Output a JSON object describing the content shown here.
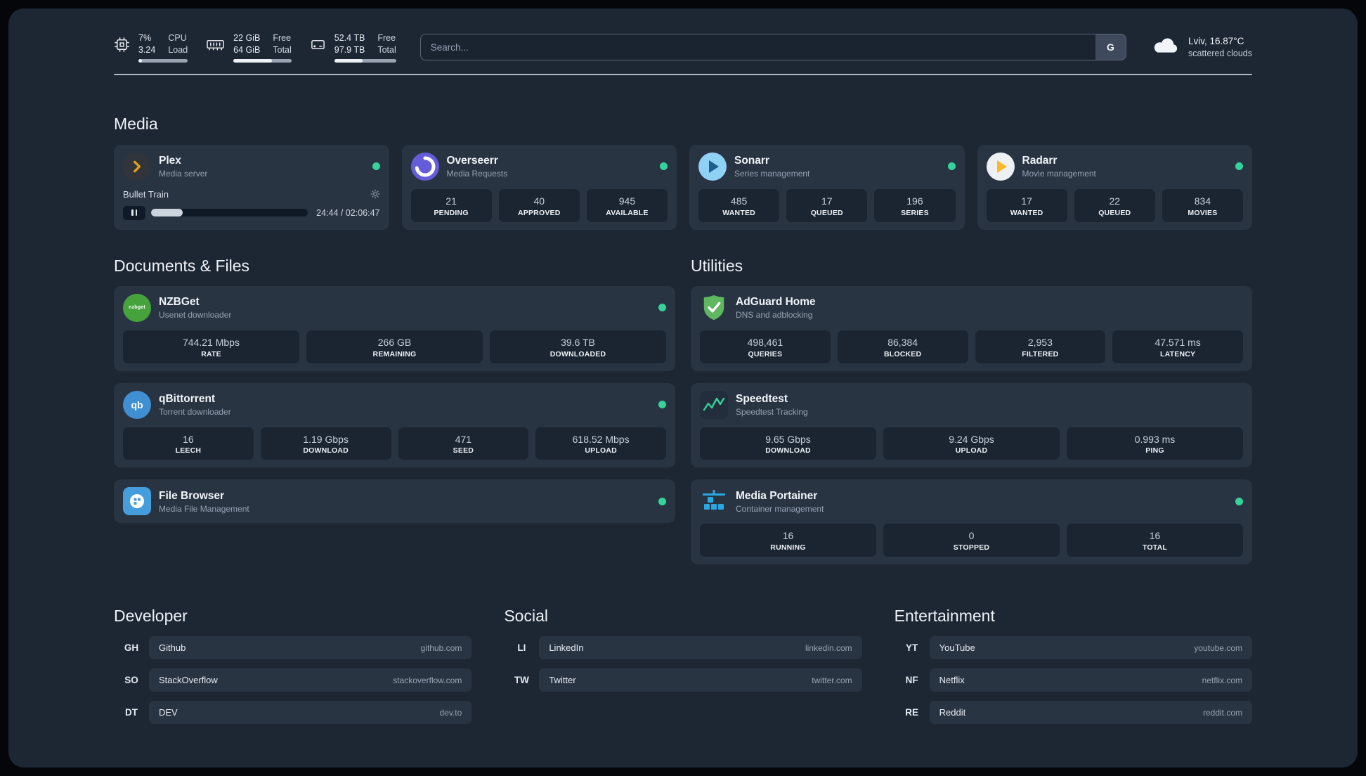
{
  "topbar": {
    "cpu": {
      "value_top": "7%",
      "value_bottom": "3.24",
      "label_top": "CPU",
      "label_bottom": "Load",
      "bar_percent": 7
    },
    "memory": {
      "value_top": "22 GiB",
      "value_bottom": "64 GiB",
      "label_top": "Free",
      "label_bottom": "Total",
      "bar_percent": 66
    },
    "disk": {
      "value_top": "52.4 TB",
      "value_bottom": "97.9 TB",
      "label_top": "Free",
      "label_bottom": "Total",
      "bar_percent": 46
    },
    "search": {
      "placeholder": "Search...",
      "provider_button": "G"
    },
    "weather": {
      "location": "Lviv, 16.87°C",
      "condition": "scattered clouds"
    }
  },
  "media": {
    "title": "Media",
    "cards": [
      {
        "name": "Plex",
        "description": "Media server",
        "player": {
          "track": "Bullet Train",
          "time": "24:44 / 02:06:47",
          "progress_percent": 20
        }
      },
      {
        "name": "Overseerr",
        "description": "Media Requests",
        "stats": [
          {
            "value": "21",
            "label": "PENDING"
          },
          {
            "value": "40",
            "label": "APPROVED"
          },
          {
            "value": "945",
            "label": "AVAILABLE"
          }
        ]
      },
      {
        "name": "Sonarr",
        "description": "Series management",
        "stats": [
          {
            "value": "485",
            "label": "WANTED"
          },
          {
            "value": "17",
            "label": "QUEUED"
          },
          {
            "value": "196",
            "label": "SERIES"
          }
        ]
      },
      {
        "name": "Radarr",
        "description": "Movie management",
        "stats": [
          {
            "value": "17",
            "label": "WANTED"
          },
          {
            "value": "22",
            "label": "QUEUED"
          },
          {
            "value": "834",
            "label": "MOVIES"
          }
        ]
      }
    ]
  },
  "documents": {
    "title": "Documents & Files",
    "cards": [
      {
        "name": "NZBGet",
        "description": "Usenet downloader",
        "icon_label": "nzbget",
        "stats": [
          {
            "value": "744.21 Mbps",
            "label": "RATE"
          },
          {
            "value": "266 GB",
            "label": "REMAINING"
          },
          {
            "value": "39.6 TB",
            "label": "DOWNLOADED"
          }
        ]
      },
      {
        "name": "qBittorrent",
        "description": "Torrent downloader",
        "icon_label": "qb",
        "stats": [
          {
            "value": "16",
            "label": "LEECH"
          },
          {
            "value": "1.19 Gbps",
            "label": "DOWNLOAD"
          },
          {
            "value": "471",
            "label": "SEED"
          },
          {
            "value": "618.52 Mbps",
            "label": "UPLOAD"
          }
        ]
      },
      {
        "name": "File Browser",
        "description": "Media File Management"
      }
    ]
  },
  "utilities": {
    "title": "Utilities",
    "cards": [
      {
        "name": "AdGuard Home",
        "description": "DNS and adblocking",
        "stats": [
          {
            "value": "498,461",
            "label": "QUERIES"
          },
          {
            "value": "86,384",
            "label": "BLOCKED"
          },
          {
            "value": "2,953",
            "label": "FILTERED"
          },
          {
            "value": "47.571 ms",
            "label": "LATENCY"
          }
        ]
      },
      {
        "name": "Speedtest",
        "description": "Speedtest Tracking",
        "stats": [
          {
            "value": "9.65 Gbps",
            "label": "DOWNLOAD"
          },
          {
            "value": "9.24 Gbps",
            "label": "UPLOAD"
          },
          {
            "value": "0.993 ms",
            "label": "PING"
          }
        ]
      },
      {
        "name": "Media Portainer",
        "description": "Container management",
        "stats": [
          {
            "value": "16",
            "label": "RUNNING"
          },
          {
            "value": "0",
            "label": "STOPPED"
          },
          {
            "value": "16",
            "label": "TOTAL"
          }
        ]
      }
    ]
  },
  "bookmarks": {
    "groups": [
      {
        "title": "Developer",
        "links": [
          {
            "abbr": "GH",
            "name": "Github",
            "url": "github.com"
          },
          {
            "abbr": "SO",
            "name": "StackOverflow",
            "url": "stackoverflow.com"
          },
          {
            "abbr": "DT",
            "name": "DEV",
            "url": "dev.to"
          }
        ]
      },
      {
        "title": "Social",
        "links": [
          {
            "abbr": "LI",
            "name": "LinkedIn",
            "url": "linkedin.com"
          },
          {
            "abbr": "TW",
            "name": "Twitter",
            "url": "twitter.com"
          }
        ]
      },
      {
        "title": "Entertainment",
        "links": [
          {
            "abbr": "YT",
            "name": "YouTube",
            "url": "youtube.com"
          },
          {
            "abbr": "NF",
            "name": "Netflix",
            "url": "netflix.com"
          },
          {
            "abbr": "RE",
            "name": "Reddit",
            "url": "reddit.com"
          }
        ]
      }
    ]
  },
  "colors": {
    "status_online": "#34d399",
    "plex_gold": "#e5a00d",
    "overseerr_purple": "#655cda",
    "sonarr_blue": "#8fd0f5",
    "radarr_gold": "#fbb929",
    "nzbget_green": "#46a33c",
    "qbittorrent_blue": "#3f8fd2",
    "filebrowser_blue": "#459ddb",
    "adguard_green": "#5fb760",
    "speedtest_green": "#34d399",
    "portainer_blue": "#2aa7e0"
  }
}
